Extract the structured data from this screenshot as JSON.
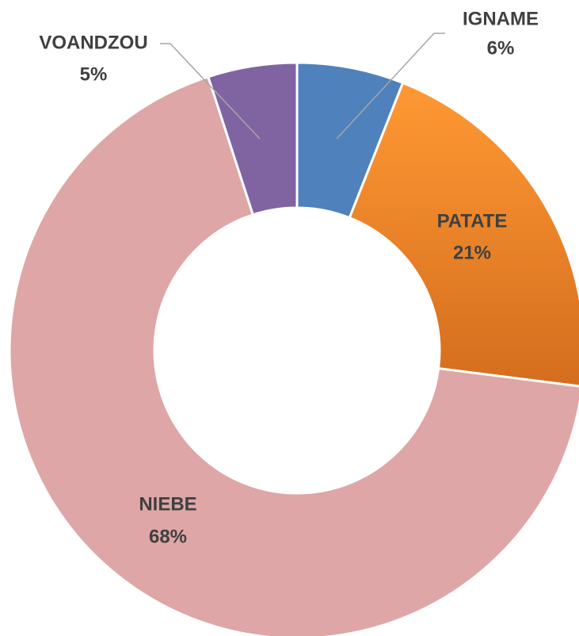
{
  "chart_data": {
    "type": "donut",
    "categories": [
      "IGNAME",
      "PATATE",
      "NIEBE",
      "VOANDZOU"
    ],
    "values": [
      6,
      21,
      68,
      5
    ],
    "value_labels": [
      "6%",
      "21%",
      "68%",
      "5%"
    ],
    "colors": [
      "#4f81bd",
      "#f28c28",
      "#dea6a6",
      "#8064a2"
    ]
  }
}
